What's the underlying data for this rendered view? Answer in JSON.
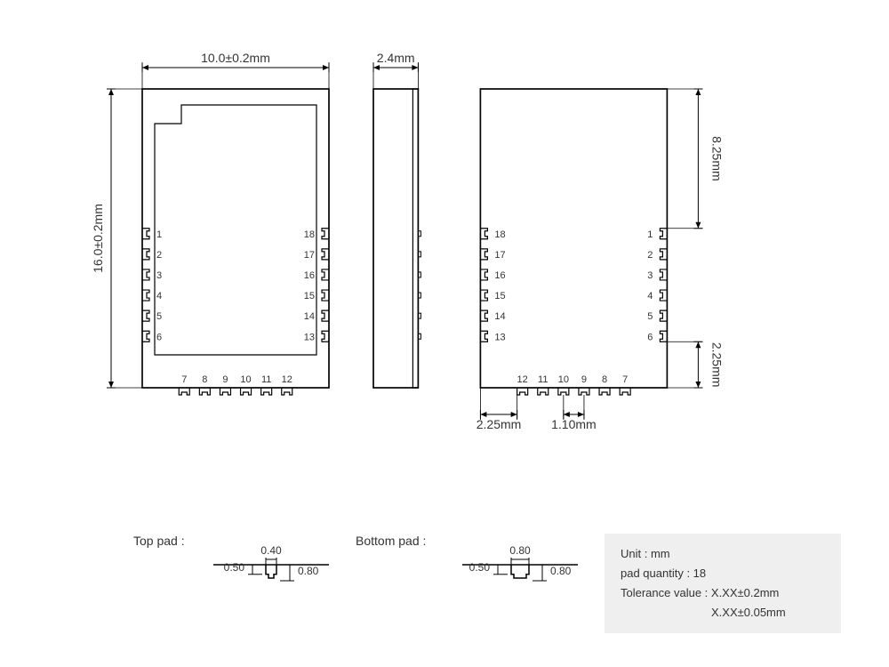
{
  "dims": {
    "width": "10.0±0.2mm",
    "height": "16.0±0.2mm",
    "thickness": "2.4mm",
    "upper": "8.25mm",
    "lower": "2.25mm",
    "bottom_left": "2.25mm",
    "bottom_pitch": "1.10mm"
  },
  "pads": {
    "top_label": "Top pad :",
    "bottom_label": "Bottom pad :",
    "top_w": "0.40",
    "top_h1": "0.50",
    "top_h2": "0.80",
    "bot_w": "0.80",
    "bot_h1": "0.50",
    "bot_h2": "0.80"
  },
  "info": {
    "l1": "Unit : mm",
    "l2": "pad quantity : 18",
    "l3": "Tolerance value : X.XX±0.2mm",
    "l4": "X.XX±0.05mm"
  },
  "left_view": {
    "left_pins": [
      "1",
      "2",
      "3",
      "4",
      "5",
      "6"
    ],
    "right_pins": [
      "18",
      "17",
      "16",
      "15",
      "14",
      "13"
    ],
    "bottom_pins": [
      "7",
      "8",
      "9",
      "10",
      "11",
      "12"
    ]
  },
  "right_view": {
    "left_pins": [
      "18",
      "17",
      "16",
      "15",
      "14",
      "13"
    ],
    "right_pins": [
      "1",
      "2",
      "3",
      "4",
      "5",
      "6"
    ],
    "bottom_pins": [
      "12",
      "11",
      "10",
      "9",
      "8",
      "7"
    ]
  },
  "style": {
    "stroke": "#000000",
    "stroke_width": 1.2,
    "text_color": "#333333",
    "pin_font": 11,
    "dim_font": 14
  }
}
